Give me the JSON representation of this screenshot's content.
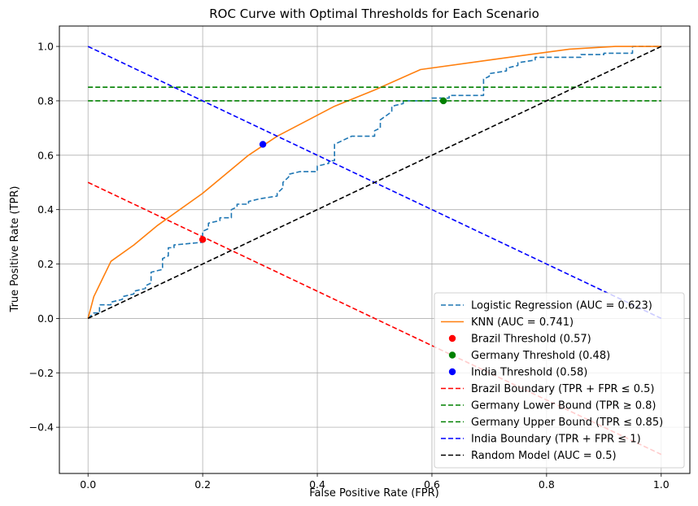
{
  "chart_data": {
    "type": "line",
    "title": "ROC Curve with Optimal Thresholds for Each Scenario",
    "xlabel": "False Positive Rate (FPR)",
    "ylabel": "True Positive Rate (TPR)",
    "xlim": [
      -0.05,
      1.05
    ],
    "ylim": [
      -0.57,
      1.075
    ],
    "xticks": [
      0.0,
      0.2,
      0.4,
      0.6,
      0.8,
      1.0
    ],
    "xtick_labels": [
      "0.0",
      "0.2",
      "0.4",
      "0.6",
      "0.8",
      "1.0"
    ],
    "yticks": [
      -0.4,
      -0.2,
      0.0,
      0.2,
      0.4,
      0.6,
      0.8,
      1.0
    ],
    "ytick_labels": [
      "−0.4",
      "−0.2",
      "0.0",
      "0.2",
      "0.4",
      "0.6",
      "0.8",
      "1.0"
    ],
    "grid": true,
    "legend_position": "bottom-right",
    "series": [
      {
        "name": "Logistic Regression (AUC = 0.623)",
        "kind": "line",
        "dash": "dashed",
        "color": "#1f77b4",
        "x": [
          0.0,
          0.01,
          0.02,
          0.02,
          0.04,
          0.04,
          0.06,
          0.06,
          0.08,
          0.08,
          0.1,
          0.1,
          0.11,
          0.11,
          0.13,
          0.13,
          0.14,
          0.14,
          0.15,
          0.15,
          0.2,
          0.2,
          0.21,
          0.21,
          0.23,
          0.23,
          0.25,
          0.25,
          0.26,
          0.26,
          0.28,
          0.28,
          0.3,
          0.3,
          0.33,
          0.33,
          0.34,
          0.34,
          0.35,
          0.35,
          0.37,
          0.37,
          0.4,
          0.4,
          0.42,
          0.42,
          0.43,
          0.43,
          0.46,
          0.46,
          0.5,
          0.5,
          0.51,
          0.51,
          0.53,
          0.53,
          0.55,
          0.55,
          0.6,
          0.6,
          0.63,
          0.63,
          0.69,
          0.69,
          0.7,
          0.7,
          0.73,
          0.73,
          0.75,
          0.75,
          0.78,
          0.78,
          0.86,
          0.86,
          0.9,
          0.9,
          0.95,
          0.95,
          1.0
        ],
        "y": [
          0.0,
          0.02,
          0.02,
          0.05,
          0.05,
          0.06,
          0.07,
          0.08,
          0.09,
          0.1,
          0.11,
          0.12,
          0.13,
          0.17,
          0.18,
          0.22,
          0.23,
          0.26,
          0.26,
          0.27,
          0.28,
          0.32,
          0.33,
          0.35,
          0.36,
          0.37,
          0.37,
          0.4,
          0.41,
          0.42,
          0.42,
          0.43,
          0.44,
          0.44,
          0.45,
          0.46,
          0.48,
          0.5,
          0.52,
          0.53,
          0.54,
          0.54,
          0.54,
          0.56,
          0.57,
          0.58,
          0.58,
          0.64,
          0.67,
          0.67,
          0.67,
          0.69,
          0.7,
          0.73,
          0.76,
          0.78,
          0.79,
          0.8,
          0.8,
          0.81,
          0.81,
          0.82,
          0.82,
          0.88,
          0.89,
          0.9,
          0.91,
          0.92,
          0.93,
          0.94,
          0.95,
          0.96,
          0.96,
          0.97,
          0.97,
          0.975,
          0.975,
          1.0,
          1.0
        ]
      },
      {
        "name": "KNN (AUC = 0.741)",
        "kind": "line",
        "dash": "solid",
        "color": "#ff7f0e",
        "x": [
          0.0,
          0.005,
          0.01,
          0.04,
          0.08,
          0.12,
          0.2,
          0.28,
          0.33,
          0.43,
          0.5,
          0.58,
          0.7,
          0.84,
          0.92,
          0.97,
          1.0
        ],
        "y": [
          0.0,
          0.04,
          0.08,
          0.21,
          0.27,
          0.34,
          0.46,
          0.6,
          0.67,
          0.78,
          0.84,
          0.915,
          0.95,
          0.99,
          1.0,
          1.0,
          1.0
        ]
      },
      {
        "name": "Brazil Threshold (0.57)",
        "kind": "point",
        "color": "#ff0000",
        "x": [
          0.2
        ],
        "y": [
          0.29
        ]
      },
      {
        "name": "Germany Threshold (0.48)",
        "kind": "point",
        "color": "#008000",
        "x": [
          0.62
        ],
        "y": [
          0.8
        ]
      },
      {
        "name": "India Threshold (0.58)",
        "kind": "point",
        "color": "#0000ff",
        "x": [
          0.305
        ],
        "y": [
          0.64
        ]
      },
      {
        "name": "Brazil Boundary (TPR + FPR ≤ 0.5)",
        "kind": "line",
        "dash": "dashed",
        "color": "#ff0000",
        "x": [
          0.0,
          1.0
        ],
        "y": [
          0.5,
          -0.5
        ]
      },
      {
        "name": "Germany Lower Bound (TPR ≥ 0.8)",
        "kind": "line",
        "dash": "dashed",
        "color": "#008000",
        "x": [
          0.0,
          1.0
        ],
        "y": [
          0.8,
          0.8
        ]
      },
      {
        "name": "Germany Upper Bound (TPR ≤ 0.85)",
        "kind": "line",
        "dash": "dashed",
        "color": "#008000",
        "x": [
          0.0,
          1.0
        ],
        "y": [
          0.85,
          0.85
        ]
      },
      {
        "name": "India Boundary (TPR + FPR ≤ 1)",
        "kind": "line",
        "dash": "dashed",
        "color": "#0000ff",
        "x": [
          0.0,
          1.0
        ],
        "y": [
          1.0,
          0.0
        ]
      },
      {
        "name": "Random Model (AUC = 0.5)",
        "kind": "line",
        "dash": "dashed",
        "color": "#000000",
        "x": [
          0.0,
          1.0
        ],
        "y": [
          0.0,
          1.0
        ]
      }
    ]
  }
}
